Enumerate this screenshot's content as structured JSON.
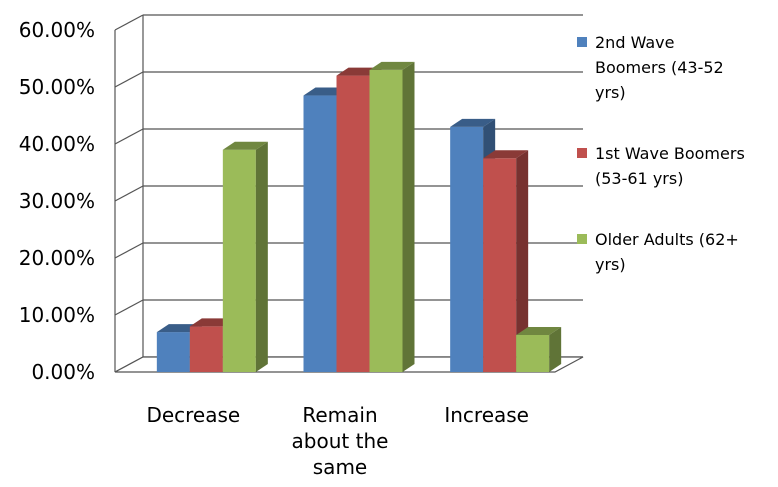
{
  "chart_data": {
    "type": "bar",
    "style": "3d-clustered-column",
    "categories": [
      "Decrease",
      "Remain about the same",
      "Increase"
    ],
    "category_lines": [
      [
        "Decrease"
      ],
      [
        "Remain",
        "about the",
        "same"
      ],
      [
        "Increase"
      ]
    ],
    "series": [
      {
        "name": "2nd Wave Boomers (43-52 yrs)",
        "values": [
          0.07,
          0.485,
          0.43
        ],
        "color": "#4F81BD"
      },
      {
        "name": "1st Wave Boomers (53-61 yrs)",
        "values": [
          0.08,
          0.52,
          0.375
        ],
        "color": "#C0504D"
      },
      {
        "name": "Older Adults (62+ yrs)",
        "values": [
          0.39,
          0.53,
          0.065
        ],
        "color": "#9BBB59"
      }
    ],
    "y_ticks": [
      "0.00%",
      "10.00%",
      "20.00%",
      "30.00%",
      "40.00%",
      "50.00%",
      "60.00%"
    ],
    "ylim": [
      0,
      0.6
    ],
    "grid": true,
    "legend_position": "right"
  },
  "legend": {
    "items": [
      {
        "lines": [
          "2nd Wave",
          "Boomers (43-52",
          "yrs)"
        ],
        "color": "#4F81BD"
      },
      {
        "lines": [
          "1st Wave Boomers",
          "(53-61 yrs)"
        ],
        "color": "#C0504D"
      },
      {
        "lines": [
          "Older Adults (62+",
          "yrs)"
        ],
        "color": "#9BBB59"
      }
    ]
  }
}
